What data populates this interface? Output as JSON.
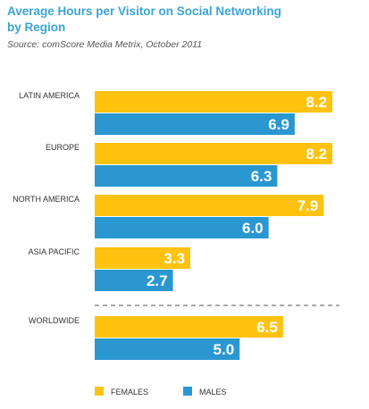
{
  "header": {
    "title": "Average Hours per Visitor on Social Networking by Region",
    "source": "Source: comScore Media Metrix, October 2011"
  },
  "chart_data": {
    "type": "bar",
    "orientation": "horizontal",
    "categories": [
      "LATIN AMERICA",
      "EUROPE",
      "NORTH AMERICA",
      "ASIA PACIFIC",
      "WORLDWIDE"
    ],
    "series": [
      {
        "name": "FEMALES",
        "color": "#ffc20e",
        "values": [
          8.2,
          8.2,
          7.9,
          3.3,
          6.5
        ]
      },
      {
        "name": "MALES",
        "color": "#2a97d1",
        "values": [
          6.9,
          6.3,
          6.0,
          2.7,
          5.0
        ]
      }
    ],
    "xlim": [
      0,
      8.2
    ],
    "title": "Average Hours per Visitor on Social Networking by Region",
    "data_labels": true,
    "legend": "bottom-left",
    "grid": false,
    "separator_before": "WORLDWIDE"
  }
}
